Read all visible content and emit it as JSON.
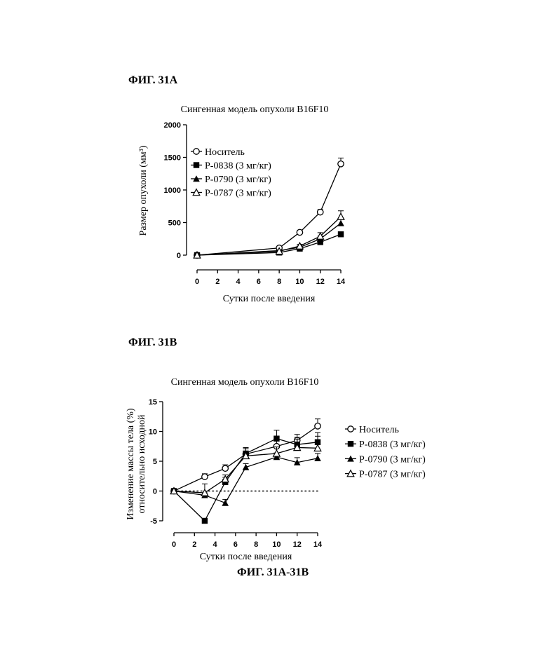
{
  "figures": {
    "fig_a_label": "ФИГ. 31А",
    "fig_b_label": "ФИГ. 31В",
    "combined_label": "ФИГ. 31А-31В"
  },
  "chart_data": [
    {
      "type": "line",
      "title": "Сингенная модель опухоли B16F10",
      "xlabel": "Сутки после введения",
      "ylabel": "Размер опухоли (мм³)",
      "xlim": [
        0,
        14
      ],
      "ylim": [
        0,
        2000
      ],
      "xticks": [
        0,
        2,
        4,
        6,
        8,
        10,
        12,
        14
      ],
      "yticks": [
        0,
        500,
        1000,
        1500,
        2000
      ],
      "legend_position": "upper-left",
      "series": [
        {
          "name": "Носитель",
          "marker": "open-circle",
          "x": [
            0,
            8,
            10,
            12,
            14
          ],
          "y": [
            0,
            110,
            350,
            660,
            1400
          ],
          "err": [
            0,
            15,
            25,
            40,
            90
          ]
        },
        {
          "name": "P-0838 (3 мг/кг)",
          "marker": "filled-square",
          "x": [
            0,
            8,
            10,
            12,
            14
          ],
          "y": [
            0,
            40,
            100,
            200,
            320
          ],
          "err": [
            0,
            10,
            15,
            25,
            35
          ]
        },
        {
          "name": "P-0790 (3 мг/кг)",
          "marker": "filled-triangle",
          "x": [
            0,
            8,
            10,
            12,
            14
          ],
          "y": [
            0,
            70,
            120,
            250,
            490
          ],
          "err": [
            0,
            10,
            20,
            40,
            60
          ]
        },
        {
          "name": "P-0787 (3 мг/кг)",
          "marker": "open-triangle",
          "x": [
            0,
            8,
            10,
            12,
            14
          ],
          "y": [
            0,
            60,
            140,
            290,
            590
          ],
          "err": [
            0,
            12,
            25,
            55,
            90
          ]
        }
      ]
    },
    {
      "type": "line",
      "title": "Сингенная модель опухоли B16F10",
      "xlabel": "Сутки после введения",
      "ylabel": [
        "Изменение массы тела (%)",
        "относительно исходной"
      ],
      "xlim": [
        0,
        14
      ],
      "ylim": [
        -5,
        15
      ],
      "xticks": [
        0,
        2,
        4,
        6,
        8,
        10,
        12,
        14
      ],
      "yticks": [
        -5,
        0,
        5,
        10,
        15
      ],
      "reference_line": {
        "y": 0,
        "style": "dotted"
      },
      "legend_position": "right",
      "series": [
        {
          "name": "Носитель",
          "marker": "open-circle",
          "x": [
            0,
            3,
            5,
            7,
            10,
            12,
            14
          ],
          "y": [
            0,
            2.4,
            3.8,
            6.2,
            7.5,
            8.5,
            10.9
          ],
          "err": [
            0,
            0.5,
            0.6,
            0.9,
            1.3,
            1.0,
            1.2
          ]
        },
        {
          "name": "P-0838 (3 мг/кг)",
          "marker": "filled-square",
          "x": [
            0,
            3,
            5,
            7,
            10,
            12,
            14
          ],
          "y": [
            0,
            -5.0,
            1.5,
            6.3,
            8.8,
            7.8,
            8.2
          ],
          "err": [
            0,
            0.3,
            0.8,
            1.0,
            1.4,
            1.2,
            1.6
          ]
        },
        {
          "name": "P-0790 (3 мг/кг)",
          "marker": "filled-triangle",
          "x": [
            0,
            3,
            5,
            7,
            10,
            12,
            14
          ],
          "y": [
            0,
            -0.7,
            -2.0,
            4.0,
            5.7,
            4.8,
            5.5
          ],
          "err": [
            0,
            0.4,
            0.6,
            0.6,
            0.7,
            0.8,
            0.8
          ]
        },
        {
          "name": "P-0787 (3 мг/кг)",
          "marker": "open-triangle",
          "x": [
            0,
            3,
            5,
            7,
            10,
            12,
            14
          ],
          "y": [
            0,
            -0.3,
            2.0,
            5.9,
            6.3,
            7.3,
            7.2
          ],
          "err": [
            0,
            1.5,
            0.7,
            1.2,
            1.1,
            1.4,
            2.0
          ]
        }
      ]
    }
  ]
}
